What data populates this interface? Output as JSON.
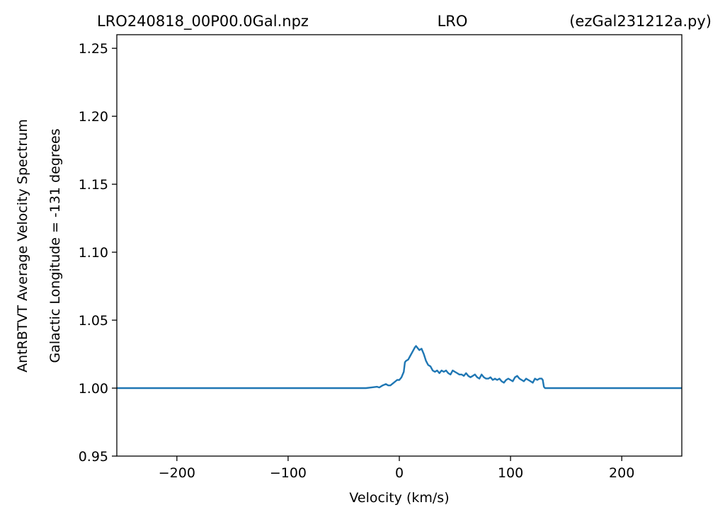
{
  "title": {
    "left": "LRO240818_00P00.0Gal.npz",
    "center": "LRO",
    "right": "(ezGal231212a.py)"
  },
  "colors": {
    "line": "#1f77b4",
    "axes": "#000000",
    "background": "#ffffff"
  },
  "chart_data": {
    "type": "line",
    "xlabel": "Velocity (km/s)",
    "ylabel_outer": "AntRBTVT Average Velocity Spectrum",
    "ylabel_inner": "Galactic Longitude = -131 degrees",
    "xlim": [
      -254,
      254
    ],
    "ylim": [
      0.95,
      1.26
    ],
    "xticks": [
      {
        "value": -200,
        "label": "−200"
      },
      {
        "value": -100,
        "label": "−100"
      },
      {
        "value": 0,
        "label": "0"
      },
      {
        "value": 100,
        "label": "100"
      },
      {
        "value": 200,
        "label": "200"
      }
    ],
    "yticks": [
      {
        "value": 0.95,
        "label": "0.95"
      },
      {
        "value": 1.0,
        "label": "1.00"
      },
      {
        "value": 1.05,
        "label": "1.05"
      },
      {
        "value": 1.1,
        "label": "1.10"
      },
      {
        "value": 1.15,
        "label": "1.15"
      },
      {
        "value": 1.2,
        "label": "1.20"
      },
      {
        "value": 1.25,
        "label": "1.25"
      }
    ],
    "grid": false,
    "series": [
      {
        "x": [
          -254,
          -35,
          -30,
          -25,
          -20,
          -18,
          -15,
          -12,
          -10,
          -8,
          -5,
          -2,
          0,
          2,
          4,
          5,
          6,
          8,
          10,
          12,
          14,
          15,
          16,
          18,
          20,
          22,
          24,
          26,
          28,
          30,
          32,
          34,
          36,
          38,
          40,
          42,
          44,
          46,
          48,
          50,
          52,
          54,
          56,
          58,
          60,
          62,
          64,
          66,
          68,
          70,
          72,
          74,
          76,
          78,
          80,
          82,
          84,
          86,
          88,
          90,
          92,
          94,
          96,
          98,
          100,
          102,
          104,
          106,
          108,
          110,
          112,
          114,
          116,
          118,
          120,
          122,
          124,
          126,
          128,
          129,
          130,
          131,
          135,
          254
        ],
        "y": [
          1.0,
          1.0,
          1.0,
          1.0005,
          1.001,
          1.0005,
          1.002,
          1.003,
          1.002,
          1.002,
          1.004,
          1.006,
          1.006,
          1.008,
          1.012,
          1.019,
          1.02,
          1.021,
          1.024,
          1.027,
          1.03,
          1.031,
          1.03,
          1.028,
          1.029,
          1.025,
          1.02,
          1.017,
          1.016,
          1.013,
          1.012,
          1.013,
          1.011,
          1.013,
          1.012,
          1.013,
          1.011,
          1.01,
          1.013,
          1.012,
          1.011,
          1.01,
          1.01,
          1.009,
          1.011,
          1.009,
          1.008,
          1.009,
          1.01,
          1.008,
          1.007,
          1.01,
          1.008,
          1.007,
          1.007,
          1.008,
          1.006,
          1.007,
          1.006,
          1.007,
          1.005,
          1.004,
          1.006,
          1.007,
          1.006,
          1.005,
          1.008,
          1.009,
          1.007,
          1.006,
          1.005,
          1.007,
          1.006,
          1.005,
          1.004,
          1.007,
          1.006,
          1.007,
          1.007,
          1.006,
          1.001,
          1.0,
          1.0,
          1.0
        ]
      }
    ]
  }
}
